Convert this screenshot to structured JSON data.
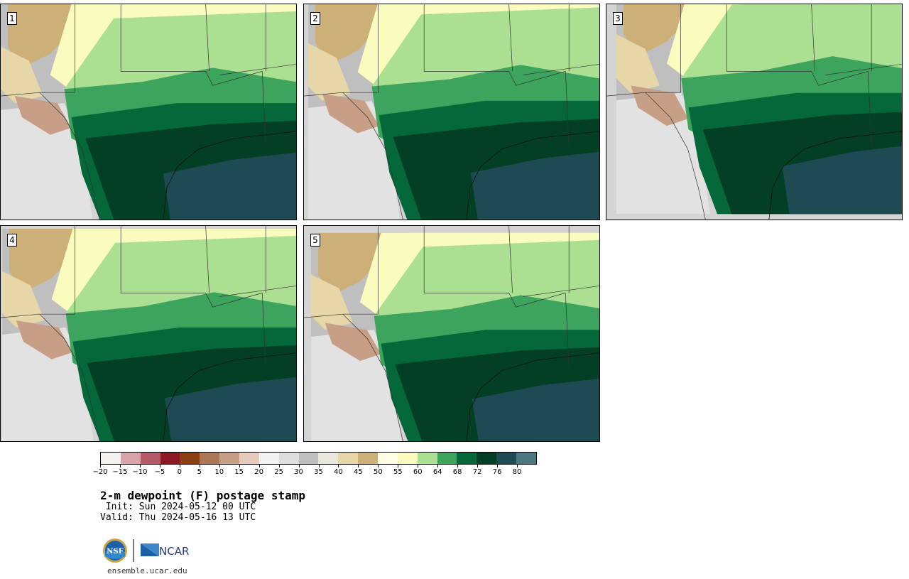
{
  "panels": [
    {
      "label": "1"
    },
    {
      "label": "2"
    },
    {
      "label": "3"
    },
    {
      "label": "4"
    },
    {
      "label": "5"
    }
  ],
  "colorbar": {
    "colors": [
      "#f4f1f1",
      "#d9a4a9",
      "#b35c67",
      "#8b1a26",
      "#8a3f10",
      "#ab7754",
      "#c79f86",
      "#e6cbbd",
      "#f3f3f3",
      "#dedede",
      "#bfbfbf",
      "#e8e6dd",
      "#e6d6a8",
      "#cdb078",
      "#fffde6",
      "#f9fbbf",
      "#abdf91",
      "#3ca45c",
      "#04683a",
      "#033f25",
      "#1d4a53",
      "#4e7881"
    ],
    "tick_labels": [
      "−20",
      "−15",
      "−10",
      "−5",
      "0",
      "5",
      "10",
      "15",
      "20",
      "25",
      "30",
      "35",
      "40",
      "45",
      "50",
      "55",
      "60",
      "64",
      "68",
      "72",
      "76",
      "80"
    ]
  },
  "title": "2-m dewpoint (F) postage stamp",
  "init": " Init: Sun 2024-05-12 00 UTC",
  "valid": "Valid: Thu 2024-05-16 13 UTC",
  "logos": {
    "nsf_text": "NSF",
    "ncar_text": "NCAR"
  },
  "url": "ensemble.ucar.edu"
}
